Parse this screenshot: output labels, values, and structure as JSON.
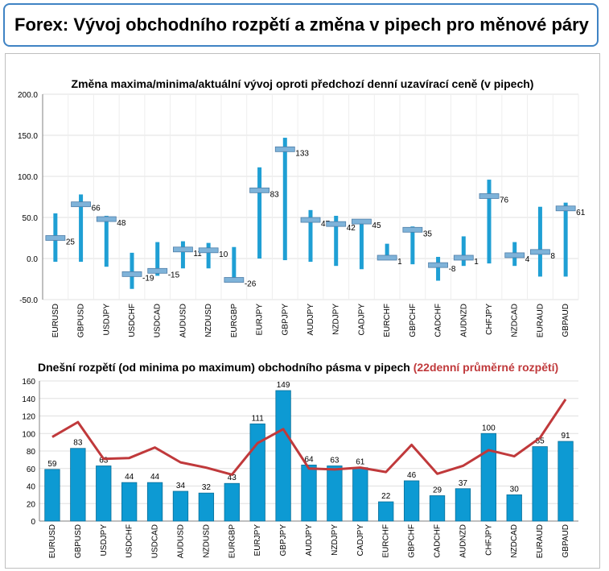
{
  "page": {
    "title": "Forex: Vývoj obchodního rozpětí a změna v pipech pro měnové páry"
  },
  "chart_data": [
    {
      "type": "range",
      "title": "Změna maxima/minima/aktuální vývoj oproti předchozí denní uzavírací ceně (v pipech)",
      "ylim": [
        -50,
        200
      ],
      "yticks": [
        "200.0",
        "150.0",
        "100.0",
        "50.0",
        "0.0",
        "-50.0"
      ],
      "grid": true,
      "categories": [
        "EURUSD",
        "GBPUSD",
        "USDJPY",
        "USDCHF",
        "USDCAD",
        "AUDUSD",
        "NZDUSD",
        "EURGBP",
        "EURJPY",
        "GBPJPY",
        "AUDJPY",
        "NZDJPY",
        "CADJPY",
        "EURCHF",
        "GBPCHF",
        "CADCHF",
        "AUDNZD",
        "CHFJPY",
        "NZDCAD",
        "EURAUD",
        "GBPAUD"
      ],
      "high": [
        55,
        78,
        52,
        7,
        20,
        21,
        19,
        14,
        111,
        147,
        59,
        52,
        47,
        18,
        39,
        2,
        27,
        96,
        20,
        63,
        68
      ],
      "low": [
        -4,
        -4,
        -10,
        -37,
        -21,
        -12,
        -12,
        -28,
        0,
        -2,
        -4,
        -9,
        -13,
        0,
        -7,
        -27,
        -9,
        -6,
        -9,
        -22,
        -22
      ],
      "current": [
        25,
        66,
        48,
        -19,
        -15,
        11,
        10,
        -26,
        83,
        133,
        47,
        42,
        45,
        1,
        35,
        -8,
        1,
        76,
        4,
        8,
        61
      ],
      "colors": {
        "range": "#1f9fd4",
        "marker": "#7fb3d9"
      }
    },
    {
      "type": "bar",
      "title": "Dnešní rozpětí (od minima po maximum) obchodního pásma v pipech",
      "subtitle": "(22denní průměrné rozpětí)",
      "ylim": [
        0,
        160
      ],
      "yticks": [
        "160",
        "140",
        "120",
        "100",
        "80",
        "60",
        "40",
        "20",
        "0"
      ],
      "grid": true,
      "categories": [
        "EURUSD",
        "GBPUSD",
        "USDJPY",
        "USDCHF",
        "USDCAD",
        "AUDUSD",
        "NZDUSD",
        "EURGBP",
        "EURJPY",
        "GBPJPY",
        "AUDJPY",
        "NZDJPY",
        "CADJPY",
        "EURCHF",
        "GBPCHF",
        "CADCHF",
        "AUDNZD",
        "CHFJPY",
        "NZDCAD",
        "EURAUD",
        "GBPAUD"
      ],
      "series": [
        {
          "type": "bar",
          "values": [
            59,
            83,
            63,
            44,
            44,
            34,
            32,
            43,
            111,
            149,
            64,
            63,
            61,
            22,
            46,
            29,
            37,
            100,
            30,
            85,
            91
          ]
        },
        {
          "type": "line",
          "values": [
            96,
            113,
            71,
            72,
            84,
            67,
            61,
            53,
            89,
            105,
            60,
            59,
            61,
            56,
            87,
            54,
            63,
            81,
            74,
            95,
            139
          ]
        }
      ],
      "colors": {
        "bar": "#0d9ad3",
        "line": "#c0393b",
        "subtitle": "#c0393b"
      }
    }
  ]
}
